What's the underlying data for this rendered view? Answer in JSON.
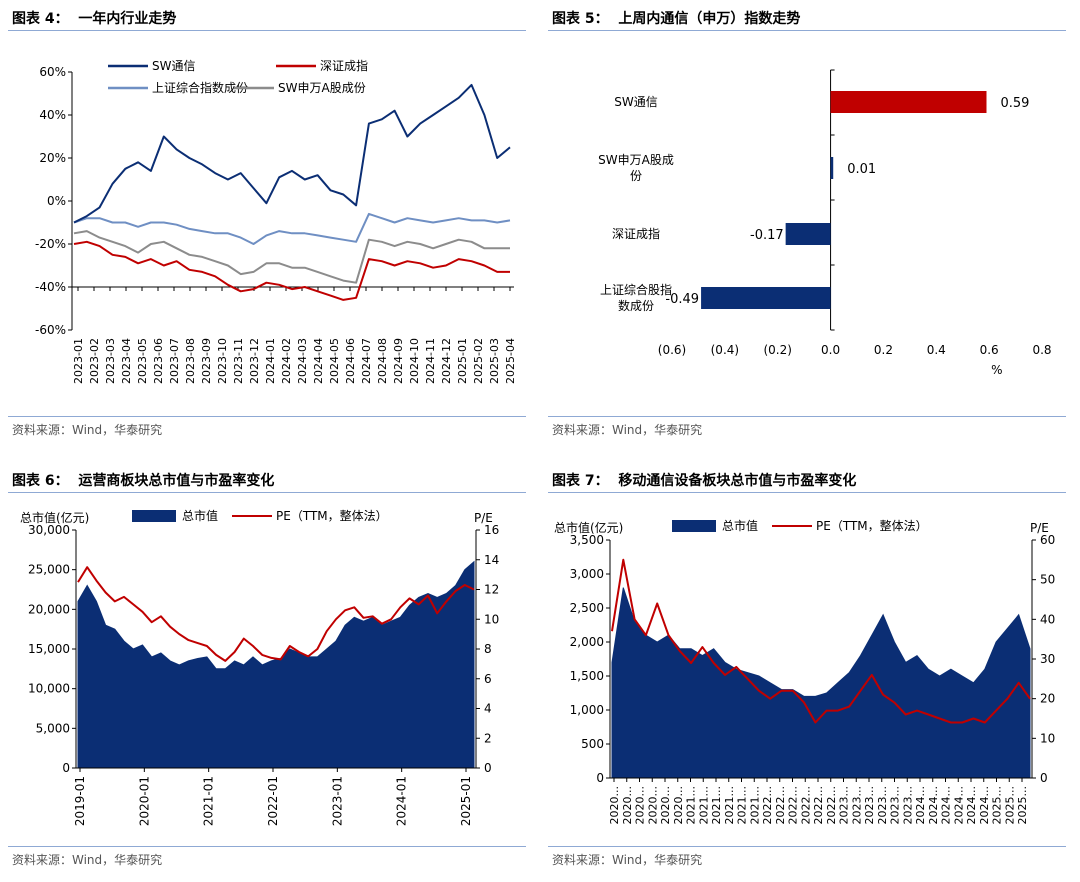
{
  "panels": [
    {
      "title": "图表 4：  一年内行业走势",
      "source": "资料来源：Wind，华泰研究"
    },
    {
      "title": "图表 5：  上周内通信（申万）指数走势",
      "source": "资料来源：Wind，华泰研究"
    },
    {
      "title": "图表 6：  运营商板块总市值与市盈率变化",
      "source": "资料来源：Wind，华泰研究"
    },
    {
      "title": "图表 7：  移动通信设备板块总市值与市盈率变化",
      "source": "资料来源：Wind，华泰研究"
    }
  ],
  "colors": {
    "navy": "#0b2e74",
    "red": "#c00000",
    "lightblue": "#6f8fc3",
    "gray": "#8c8c8c",
    "rule": "#8fa9d4"
  },
  "chart_data": [
    {
      "type": "line",
      "ylim": [
        -60,
        60
      ],
      "y_ticks": [
        "60%",
        "40%",
        "20%",
        "0%",
        "-20%",
        "-40%",
        "-60%"
      ],
      "x_ticks": [
        "2023-01",
        "2023-02",
        "2023-03",
        "2023-04",
        "2023-05",
        "2023-06",
        "2023-07",
        "2023-08",
        "2023-09",
        "2023-10",
        "2023-11",
        "2023-12",
        "2024-01",
        "2024-02",
        "2024-03",
        "2024-04",
        "2024-05",
        "2024-06",
        "2024-07",
        "2024-08",
        "2024-09",
        "2024-10",
        "2024-11",
        "2024-12",
        "2025-01",
        "2025-02",
        "2025-03",
        "2025-04"
      ],
      "legend_position": "top",
      "series": [
        {
          "name": "SW通信",
          "color": "navy",
          "values": [
            -10,
            -7,
            -3,
            8,
            15,
            18,
            14,
            30,
            24,
            20,
            17,
            13,
            10,
            13,
            6,
            -1,
            11,
            14,
            10,
            12,
            5,
            3,
            -2,
            36,
            38,
            42,
            30,
            36,
            40,
            44,
            48,
            54,
            40,
            20,
            25
          ]
        },
        {
          "name": "深证成指",
          "color": "red",
          "values": [
            -20,
            -19,
            -21,
            -25,
            -26,
            -29,
            -27,
            -30,
            -28,
            -32,
            -33,
            -35,
            -39,
            -42,
            -41,
            -38,
            -39,
            -41,
            -40,
            -42,
            -44,
            -46,
            -45,
            -27,
            -28,
            -30,
            -28,
            -29,
            -31,
            -30,
            -27,
            -28,
            -30,
            -33,
            -33
          ]
        },
        {
          "name": "上证综合指数成份",
          "color": "lightblue",
          "values": [
            -10,
            -8,
            -8,
            -10,
            -10,
            -12,
            -10,
            -10,
            -11,
            -13,
            -14,
            -15,
            -15,
            -17,
            -20,
            -16,
            -14,
            -15,
            -15,
            -16,
            -17,
            -18,
            -19,
            -6,
            -8,
            -10,
            -8,
            -9,
            -10,
            -9,
            -8,
            -9,
            -9,
            -10,
            -9
          ]
        },
        {
          "name": "SW申万A股成份",
          "color": "gray",
          "values": [
            -15,
            -14,
            -17,
            -19,
            -21,
            -24,
            -20,
            -19,
            -22,
            -25,
            -26,
            -28,
            -30,
            -34,
            -33,
            -29,
            -29,
            -31,
            -31,
            -33,
            -35,
            -37,
            -38,
            -18,
            -19,
            -21,
            -19,
            -20,
            -22,
            -20,
            -18,
            -19,
            -22,
            -22,
            -22
          ]
        }
      ]
    },
    {
      "type": "bar",
      "orientation": "horizontal",
      "categories": [
        "SW通信",
        "SW申万A股成份",
        "深证成指",
        "上证综合股指数成份"
      ],
      "values": [
        0.59,
        0.01,
        -0.17,
        -0.49
      ],
      "value_labels": [
        "0.59",
        "0.01",
        "-0.17",
        "-0.49"
      ],
      "xlim": [
        -0.6,
        0.8
      ],
      "x_ticks": [
        "(0.6)",
        "(0.4)",
        "(0.2)",
        "0.0",
        "0.2",
        "0.4",
        "0.6",
        "0.8"
      ],
      "xlabel": "%"
    },
    {
      "type": "area",
      "left_axis_label": "总市值(亿元)",
      "right_axis_label": "P/E",
      "y_left_ticks": [
        "30,000",
        "25,000",
        "20,000",
        "15,000",
        "10,000",
        "5,000",
        "0"
      ],
      "y_right_ticks": [
        "16",
        "14",
        "12",
        "10",
        "8",
        "6",
        "4",
        "2",
        "0"
      ],
      "ylim_left": [
        0,
        30000
      ],
      "ylim_right": [
        0,
        16
      ],
      "x_ticks": [
        "2019-01",
        "2020-01",
        "2021-01",
        "2022-01",
        "2023-01",
        "2024-01",
        "2025-01"
      ],
      "legend_position": "top",
      "series": [
        {
          "name": "总市值",
          "color": "navy",
          "axis": "left",
          "values": [
            21000,
            23000,
            21000,
            18000,
            17500,
            16000,
            15000,
            15500,
            14000,
            14500,
            13500,
            13000,
            13500,
            13800,
            14000,
            12500,
            12500,
            13500,
            13000,
            14000,
            13000,
            13500,
            13800,
            15000,
            14500,
            14000,
            14000,
            15000,
            16000,
            18000,
            19000,
            18500,
            19000,
            18000,
            18500,
            19000,
            20500,
            21500,
            22000,
            21500,
            22000,
            23000,
            25000,
            26000
          ]
        },
        {
          "name": "PE（TTM，整体法）",
          "color": "red",
          "axis": "right",
          "values": [
            12.5,
            13.5,
            12.6,
            11.8,
            11.2,
            11.5,
            11.0,
            10.5,
            9.8,
            10.2,
            9.5,
            9.0,
            8.6,
            8.4,
            8.2,
            7.6,
            7.2,
            7.8,
            8.7,
            8.2,
            7.6,
            7.4,
            7.3,
            8.2,
            7.8,
            7.5,
            8.0,
            9.2,
            10.0,
            10.6,
            10.8,
            10.1,
            10.2,
            9.7,
            10.0,
            10.8,
            11.4,
            11.0,
            11.6,
            10.4,
            11.2,
            11.9,
            12.3,
            12.0
          ]
        }
      ]
    },
    {
      "type": "area",
      "left_axis_label": "总市值(亿元)",
      "right_axis_label": "P/E",
      "y_left_ticks": [
        "3,500",
        "3,000",
        "2,500",
        "2,000",
        "1,500",
        "1,000",
        "500",
        "0"
      ],
      "y_right_ticks": [
        "60",
        "50",
        "40",
        "30",
        "20",
        "10",
        "0"
      ],
      "ylim_left": [
        0,
        3500
      ],
      "ylim_right": [
        0,
        60
      ],
      "x_ticks": [
        "2020...",
        "2020...",
        "2020...",
        "2020...",
        "2020...",
        "2020...",
        "2021...",
        "2021...",
        "2021...",
        "2021...",
        "2021...",
        "2021...",
        "2022...",
        "2022...",
        "2022...",
        "2022...",
        "2022...",
        "2022...",
        "2023...",
        "2023...",
        "2023...",
        "2023...",
        "2023...",
        "2023...",
        "2024...",
        "2024...",
        "2024...",
        "2024...",
        "2024...",
        "2024...",
        "2025...",
        "2025...",
        "2025..."
      ],
      "legend_position": "top",
      "series": [
        {
          "name": "总市值",
          "color": "navy",
          "axis": "left",
          "values": [
            1700,
            2800,
            2300,
            2100,
            2000,
            2100,
            1900,
            1900,
            1800,
            1900,
            1700,
            1600,
            1550,
            1500,
            1400,
            1300,
            1300,
            1200,
            1200,
            1250,
            1400,
            1550,
            1800,
            2100,
            2400,
            2000,
            1700,
            1800,
            1600,
            1500,
            1600,
            1500,
            1400,
            1600,
            2000,
            2200,
            2400,
            1900
          ]
        },
        {
          "name": "PE（TTM，整体法）",
          "color": "red",
          "axis": "right",
          "values": [
            37,
            55,
            40,
            36,
            44,
            36,
            32,
            29,
            33,
            29,
            26,
            28,
            25,
            22,
            20,
            22,
            22,
            19,
            14,
            17,
            17,
            18,
            22,
            26,
            21,
            19,
            16,
            17,
            16,
            15,
            14,
            14,
            15,
            14,
            17,
            20,
            24,
            20
          ]
        }
      ]
    }
  ]
}
